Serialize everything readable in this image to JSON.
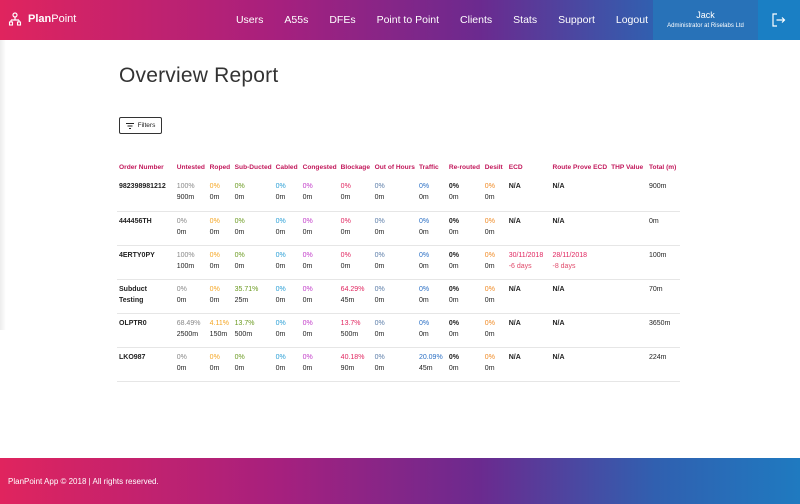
{
  "header": {
    "brand_bold": "Plan",
    "brand_rest": "Point",
    "nav": [
      "Users",
      "A55s",
      "DFEs",
      "Point to Point",
      "Clients",
      "Stats",
      "Support",
      "Logout"
    ],
    "user_name": "Jack",
    "user_role": "Administrator at Riselabs Ltd"
  },
  "page": {
    "title": "Overview Report",
    "filters_label": "Filters"
  },
  "table": {
    "columns": [
      "Order Number",
      "Untested",
      "Roped",
      "Sub-Ducted",
      "Cabled",
      "Congested",
      "Blockage",
      "Out of Hours",
      "Traffic",
      "Re-routed",
      "Desilt",
      "ECD",
      "Route Prove ECD",
      "THP Value",
      "Total (m)"
    ],
    "rows": [
      {
        "order": "982398981212",
        "untested": [
          "100%",
          "900m"
        ],
        "roped": [
          "0%",
          "0m"
        ],
        "subducted": [
          "0%",
          "0m"
        ],
        "cabled": [
          "0%",
          "0m"
        ],
        "congested": [
          "0%",
          "0m"
        ],
        "blockage": [
          "0%",
          "0m"
        ],
        "ooh": [
          "0%",
          "0m"
        ],
        "traffic": [
          "0%",
          "0m"
        ],
        "rerouted": [
          "0%",
          "0m"
        ],
        "desilt": [
          "0%",
          "0m"
        ],
        "ecd": [
          "N/A",
          ""
        ],
        "rpecd": [
          "N/A",
          ""
        ],
        "thp": "",
        "total": "900m"
      },
      {
        "order": "444456TH",
        "untested": [
          "0%",
          "0m"
        ],
        "roped": [
          "0%",
          "0m"
        ],
        "subducted": [
          "0%",
          "0m"
        ],
        "cabled": [
          "0%",
          "0m"
        ],
        "congested": [
          "0%",
          "0m"
        ],
        "blockage": [
          "0%",
          "0m"
        ],
        "ooh": [
          "0%",
          "0m"
        ],
        "traffic": [
          "0%",
          "0m"
        ],
        "rerouted": [
          "0%",
          "0m"
        ],
        "desilt": [
          "0%",
          "0m"
        ],
        "ecd": [
          "N/A",
          ""
        ],
        "rpecd": [
          "N/A",
          ""
        ],
        "thp": "",
        "total": "0m"
      },
      {
        "order": "4ERTY0PY",
        "untested": [
          "100%",
          "100m"
        ],
        "roped": [
          "0%",
          "0m"
        ],
        "subducted": [
          "0%",
          "0m"
        ],
        "cabled": [
          "0%",
          "0m"
        ],
        "congested": [
          "0%",
          "0m"
        ],
        "blockage": [
          "0%",
          "0m"
        ],
        "ooh": [
          "0%",
          "0m"
        ],
        "traffic": [
          "0%",
          "0m"
        ],
        "rerouted": [
          "0%",
          "0m"
        ],
        "desilt": [
          "0%",
          "0m"
        ],
        "ecd": [
          "30/11/2018",
          "-6 days"
        ],
        "rpecd": [
          "28/11/2018",
          "-8 days"
        ],
        "thp": "",
        "total": "100m"
      },
      {
        "order": "Subduct Testing",
        "untested": [
          "0%",
          "0m"
        ],
        "roped": [
          "0%",
          "0m"
        ],
        "subducted": [
          "35.71%",
          "25m"
        ],
        "cabled": [
          "0%",
          "0m"
        ],
        "congested": [
          "0%",
          "0m"
        ],
        "blockage": [
          "64.29%",
          "45m"
        ],
        "ooh": [
          "0%",
          "0m"
        ],
        "traffic": [
          "0%",
          "0m"
        ],
        "rerouted": [
          "0%",
          "0m"
        ],
        "desilt": [
          "0%",
          "0m"
        ],
        "ecd": [
          "N/A",
          ""
        ],
        "rpecd": [
          "N/A",
          ""
        ],
        "thp": "",
        "total": "70m"
      },
      {
        "order": "OLPTR0",
        "untested": [
          "68.49%",
          "2500m"
        ],
        "roped": [
          "4.11%",
          "150m"
        ],
        "subducted": [
          "13.7%",
          "500m"
        ],
        "cabled": [
          "0%",
          "0m"
        ],
        "congested": [
          "0%",
          "0m"
        ],
        "blockage": [
          "13.7%",
          "500m"
        ],
        "ooh": [
          "0%",
          "0m"
        ],
        "traffic": [
          "0%",
          "0m"
        ],
        "rerouted": [
          "0%",
          "0m"
        ],
        "desilt": [
          "0%",
          "0m"
        ],
        "ecd": [
          "N/A",
          ""
        ],
        "rpecd": [
          "N/A",
          ""
        ],
        "thp": "",
        "total": "3650m"
      },
      {
        "order": "LKO987",
        "untested": [
          "0%",
          "0m"
        ],
        "roped": [
          "0%",
          "0m"
        ],
        "subducted": [
          "0%",
          "0m"
        ],
        "cabled": [
          "0%",
          "0m"
        ],
        "congested": [
          "0%",
          "0m"
        ],
        "blockage": [
          "40.18%",
          "90m"
        ],
        "ooh": [
          "0%",
          "0m"
        ],
        "traffic": [
          "20.09%",
          "45m"
        ],
        "rerouted": [
          "0%",
          "0m"
        ],
        "desilt": [
          "0%",
          "0m"
        ],
        "ecd": [
          "N/A",
          ""
        ],
        "rpecd": [
          "N/A",
          ""
        ],
        "thp": "",
        "total": "224m"
      }
    ]
  },
  "footer": {
    "text": "PlanPoint App © 2018 | All rights reserved."
  },
  "colors": {
    "header_start": "#e0245e",
    "header_end": "#1f7ac0",
    "column_header": "#c2185b"
  }
}
